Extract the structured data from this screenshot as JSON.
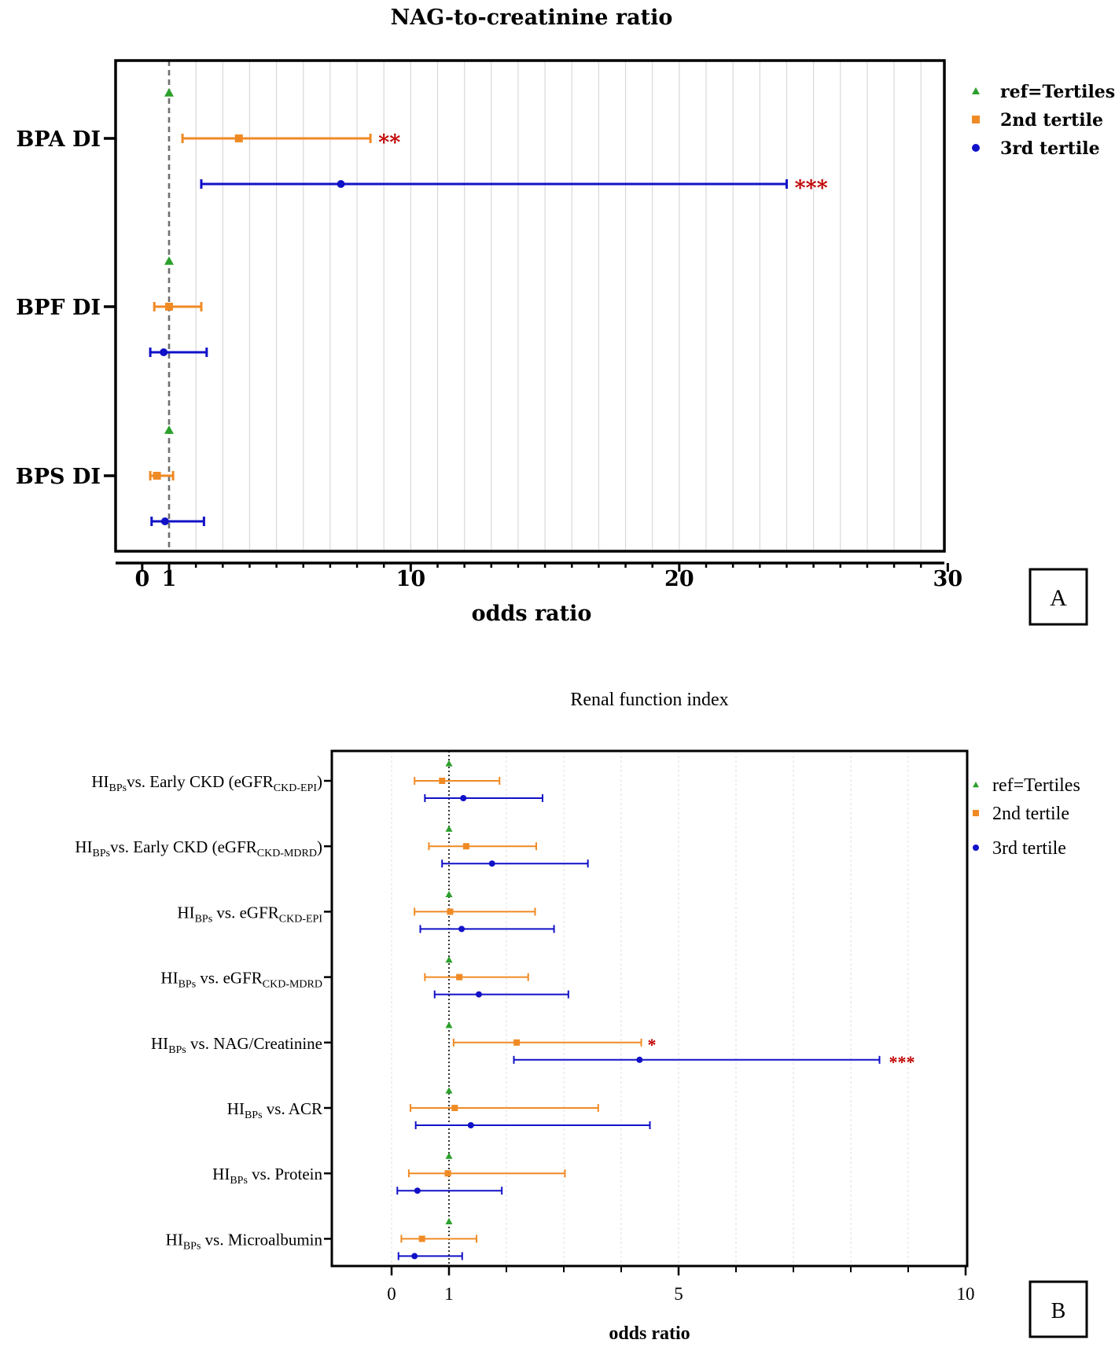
{
  "colors": {
    "ref": "#2ca02c",
    "second": "#f08a24",
    "third": "#1111c8",
    "star": "#c00000",
    "axis": "#000000",
    "grid": "#d8d8d8",
    "refline": "#707070"
  },
  "panel_labels": {
    "a": "A",
    "b": "B"
  },
  "chart_data": [
    {
      "type": "forest",
      "title": "NAG-to-creatinine ratio",
      "xlabel": "odds ratio",
      "xlim": [
        -0.9,
        30
      ],
      "ref_value": 1,
      "xticks": [
        {
          "value": 0,
          "label": "0"
        },
        {
          "value": 1,
          "label": "1"
        },
        {
          "value": 10,
          "label": "10"
        },
        {
          "value": 20,
          "label": "20"
        },
        {
          "value": 30,
          "label": "30"
        }
      ],
      "legend": [
        {
          "key": "ref",
          "marker": "triangle",
          "label": "ref=Tertiles"
        },
        {
          "key": "second",
          "marker": "square",
          "label": "2nd tertile"
        },
        {
          "key": "third",
          "marker": "circle",
          "label": "3rd tertile"
        }
      ],
      "groups": [
        {
          "label": "BPA DI",
          "rows": [
            {
              "series": "ref",
              "or": 1
            },
            {
              "series": "second",
              "or": 3.6,
              "lo": 1.5,
              "hi": 8.5,
              "sig": "**"
            },
            {
              "series": "third",
              "or": 7.4,
              "lo": 2.2,
              "hi": 24.0,
              "sig": "***"
            }
          ]
        },
        {
          "label": "BPF DI",
          "rows": [
            {
              "series": "ref",
              "or": 1
            },
            {
              "series": "second",
              "or": 1.0,
              "lo": 0.45,
              "hi": 2.2
            },
            {
              "series": "third",
              "or": 0.8,
              "lo": 0.3,
              "hi": 2.4
            }
          ]
        },
        {
          "label": "BPS DI",
          "rows": [
            {
              "series": "ref",
              "or": 1
            },
            {
              "series": "second",
              "or": 0.55,
              "lo": 0.3,
              "hi": 1.15
            },
            {
              "series": "third",
              "or": 0.85,
              "lo": 0.35,
              "hi": 2.3
            }
          ]
        }
      ]
    },
    {
      "type": "forest",
      "title": "Renal function index",
      "xlabel": "odds ratio",
      "xlim": [
        -1,
        10
      ],
      "ref_value": 1,
      "xticks": [
        {
          "value": 0,
          "label": "0"
        },
        {
          "value": 1,
          "label": "1"
        },
        {
          "value": 5,
          "label": "5"
        },
        {
          "value": 10,
          "label": "10"
        }
      ],
      "legend": [
        {
          "key": "ref",
          "marker": "triangle",
          "label": "ref=Tertiles"
        },
        {
          "key": "second",
          "marker": "square",
          "label": "2nd tertile"
        },
        {
          "key": "third",
          "marker": "circle",
          "label": "3rd tertile"
        }
      ],
      "groups": [
        {
          "label": {
            "pre": "HI",
            "sub1": "BPs",
            "mid": "vs. Early CKD (eGFR",
            "sub2": "CKD-EPI",
            "post": ")"
          },
          "rows": [
            {
              "series": "ref",
              "or": 1
            },
            {
              "series": "second",
              "or": 0.88,
              "lo": 0.4,
              "hi": 1.88
            },
            {
              "series": "third",
              "or": 1.25,
              "lo": 0.58,
              "hi": 2.63
            }
          ]
        },
        {
          "label": {
            "pre": "HI",
            "sub1": "BPs",
            "mid": "vs. Early CKD (eGFR",
            "sub2": "CKD-MDRD",
            "post": ")"
          },
          "rows": [
            {
              "series": "ref",
              "or": 1
            },
            {
              "series": "second",
              "or": 1.3,
              "lo": 0.65,
              "hi": 2.52
            },
            {
              "series": "third",
              "or": 1.75,
              "lo": 0.88,
              "hi": 3.42
            }
          ]
        },
        {
          "label": {
            "pre": "HI",
            "sub1": "BPs",
            "mid": " vs. eGFR",
            "sub2": "CKD-EPI",
            "post": ""
          },
          "rows": [
            {
              "series": "ref",
              "or": 1
            },
            {
              "series": "second",
              "or": 1.02,
              "lo": 0.4,
              "hi": 2.5
            },
            {
              "series": "third",
              "or": 1.22,
              "lo": 0.5,
              "hi": 2.83
            }
          ]
        },
        {
          "label": {
            "pre": "HI",
            "sub1": "BPs",
            "mid": " vs. eGFR",
            "sub2": "CKD-MDRD",
            "post": ""
          },
          "rows": [
            {
              "series": "ref",
              "or": 1
            },
            {
              "series": "second",
              "or": 1.18,
              "lo": 0.58,
              "hi": 2.38
            },
            {
              "series": "third",
              "or": 1.52,
              "lo": 0.75,
              "hi": 3.08
            }
          ]
        },
        {
          "label": {
            "pre": "HI",
            "sub1": "BPs",
            "mid": " vs. NAG/Creatinine",
            "sub2": "",
            "post": ""
          },
          "rows": [
            {
              "series": "ref",
              "or": 1
            },
            {
              "series": "second",
              "or": 2.18,
              "lo": 1.08,
              "hi": 4.35,
              "sig": "*"
            },
            {
              "series": "third",
              "or": 4.32,
              "lo": 2.13,
              "hi": 8.5,
              "sig": "***"
            }
          ]
        },
        {
          "label": {
            "pre": "HI",
            "sub1": "BPs",
            "mid": " vs. ACR",
            "sub2": "",
            "post": ""
          },
          "rows": [
            {
              "series": "ref",
              "or": 1
            },
            {
              "series": "second",
              "or": 1.1,
              "lo": 0.33,
              "hi": 3.6
            },
            {
              "series": "third",
              "or": 1.38,
              "lo": 0.42,
              "hi": 4.5
            }
          ]
        },
        {
          "label": {
            "pre": "HI",
            "sub1": "BPs",
            "mid": " vs.  Protein",
            "sub2": "",
            "post": ""
          },
          "rows": [
            {
              "series": "ref",
              "or": 1
            },
            {
              "series": "second",
              "or": 0.98,
              "lo": 0.3,
              "hi": 3.02
            },
            {
              "series": "third",
              "or": 0.45,
              "lo": 0.1,
              "hi": 1.92
            }
          ]
        },
        {
          "label": {
            "pre": "HI",
            "sub1": "BPs",
            "mid": " vs. Microalbumin",
            "sub2": "",
            "post": ""
          },
          "rows": [
            {
              "series": "ref",
              "or": 1
            },
            {
              "series": "second",
              "or": 0.53,
              "lo": 0.17,
              "hi": 1.48
            },
            {
              "series": "third",
              "or": 0.4,
              "lo": 0.12,
              "hi": 1.23
            }
          ]
        }
      ]
    }
  ]
}
